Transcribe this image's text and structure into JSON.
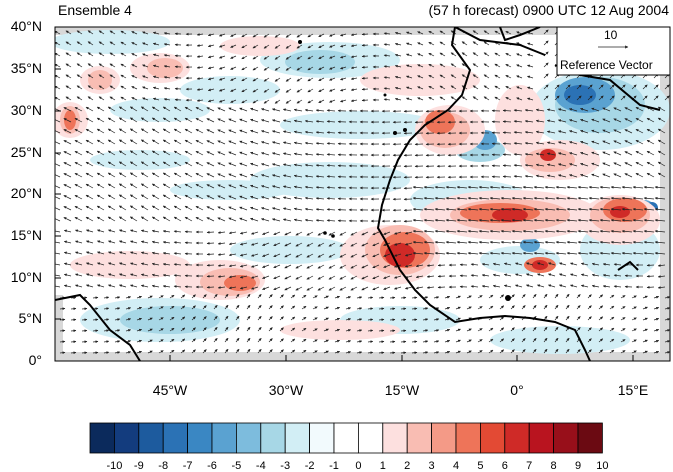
{
  "title_left": "Ensemble 4",
  "title_right": "(57 h forecast) 0900 UTC 12 Aug 2004",
  "lat_labels": [
    "40°N",
    "35°N",
    "30°N",
    "25°N",
    "20°N",
    "15°N",
    "10°N",
    "5°N",
    "0°"
  ],
  "lon_labels": [
    "45°W",
    "30°W",
    "15°W",
    "0°",
    "15°E"
  ],
  "reference_vector": {
    "magnitude": "10",
    "label": "Reference Vector"
  },
  "colorbar": {
    "labels": [
      "-10",
      "-9",
      "-8",
      "-7",
      "-6",
      "-5",
      "-4",
      "-3",
      "-2",
      "-1",
      "0",
      "1",
      "2",
      "3",
      "4",
      "5",
      "6",
      "7",
      "8",
      "9",
      "10"
    ],
    "colors": [
      "#0b2a5c",
      "#133c7e",
      "#1d5b9e",
      "#2b72b5",
      "#3a87c3",
      "#5aa2d1",
      "#7dbcdd",
      "#a7d7e6",
      "#d2eef5",
      "#f2fafd",
      "#ffffff",
      "#ffffff",
      "#fde0df",
      "#f9bdb3",
      "#f49a87",
      "#ee7459",
      "#e34a34",
      "#cf2a27",
      "#b9141f",
      "#980f1a",
      "#6b0a12"
    ]
  }
}
